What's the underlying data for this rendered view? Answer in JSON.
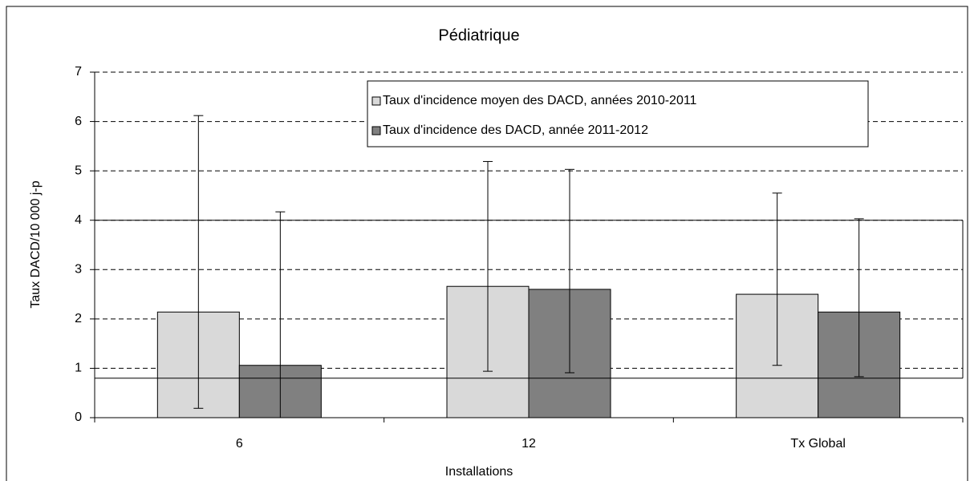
{
  "chart_data": {
    "type": "bar",
    "title": "Pédiatrique",
    "x_label": "Installations",
    "y_label": "Taux DACD/10 000 j-p",
    "categories": [
      "6",
      "12",
      "Tx Global"
    ],
    "series": [
      {
        "name": "Taux d'incidence moyen des DACD, années  2010-2011",
        "color": "#d9d9d9",
        "values": [
          2.14,
          2.66,
          2.5
        ],
        "ci_low": [
          0.19,
          0.94,
          1.06
        ],
        "ci_high": [
          6.12,
          5.19,
          4.55
        ]
      },
      {
        "name": "Taux d'incidence des DACD, année 2011-2012",
        "color": "#808080",
        "values": [
          1.06,
          2.6,
          2.14
        ],
        "ci_low": [
          0,
          0.91,
          0.83
        ],
        "ci_high": [
          4.17,
          5.03,
          4.03
        ]
      }
    ],
    "reference_lines": [
      0.8,
      4
    ],
    "ylim": [
      0,
      7
    ],
    "yticks": [
      0,
      1,
      2,
      3,
      4,
      5,
      6,
      7
    ],
    "grid": true,
    "legend": "top"
  }
}
